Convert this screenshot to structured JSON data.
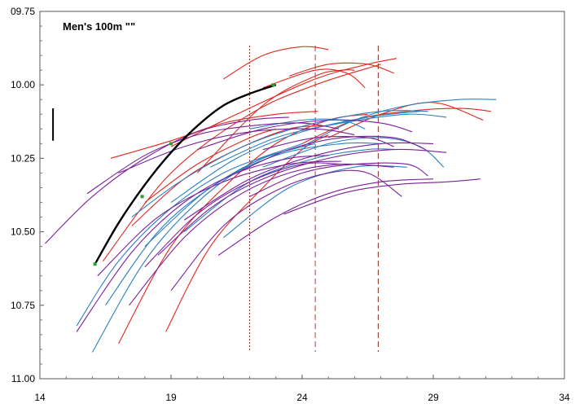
{
  "chart_data": {
    "type": "line",
    "title": "Men's 100m  \"\"",
    "xlabel": "",
    "ylabel": "",
    "xlim": [
      14,
      34
    ],
    "ylim": [
      11.0,
      9.75
    ],
    "y_inverted": true,
    "x_ticks": [
      14,
      19,
      24,
      29,
      34
    ],
    "x_tick_labels": [
      "14",
      "19",
      "24",
      "29",
      "34"
    ],
    "y_ticks": [
      9.75,
      10.0,
      10.25,
      10.5,
      10.75,
      11.0
    ],
    "y_tick_labels": [
      "09.75",
      "10.00",
      "10.25",
      "10.50",
      "10.75",
      "11.00"
    ],
    "grid": false,
    "reference_lines": [
      {
        "x": 22.0,
        "color": "#8b2a1a",
        "style": "dotted"
      },
      {
        "x": 24.5,
        "color": "#cc3333",
        "style": "dashed"
      },
      {
        "x": 26.9,
        "color": "#8b2a1a",
        "style": "dashed"
      }
    ],
    "error_bar": {
      "x": 14.5,
      "y_low": 10.08,
      "y_high": 10.19,
      "color": "#000000"
    },
    "highlight": {
      "color": "#000000",
      "points": [
        [
          16.1,
          10.61
        ],
        [
          17.0,
          10.47
        ],
        [
          18.0,
          10.34
        ],
        [
          19.0,
          10.23
        ],
        [
          20.0,
          10.14
        ],
        [
          21.0,
          10.07
        ],
        [
          22.0,
          10.03
        ],
        [
          23.0,
          10.0
        ]
      ],
      "markers": [
        [
          16.1,
          10.61
        ],
        [
          17.9,
          10.38
        ],
        [
          19.0,
          10.2
        ],
        [
          22.9,
          10.0
        ]
      ]
    },
    "series": [
      {
        "color": "#e0281e",
        "points": [
          [
            16.4,
            10.6
          ],
          [
            19.0,
            10.3
          ],
          [
            22.0,
            10.1
          ],
          [
            24.5,
            10.0
          ],
          [
            27.0,
            9.93
          ]
        ]
      },
      {
        "color": "#e0281e",
        "points": [
          [
            19.0,
            10.21
          ],
          [
            21.5,
            10.1
          ],
          [
            24.5,
            9.98
          ],
          [
            26.5,
            9.93
          ],
          [
            27.6,
            9.91
          ]
        ]
      },
      {
        "color": "#e0281e",
        "points": [
          [
            20.0,
            10.3
          ],
          [
            22.5,
            10.07
          ],
          [
            24.5,
            9.97
          ],
          [
            25.5,
            9.95
          ],
          [
            26.0,
            9.95
          ]
        ]
      },
      {
        "color": "#e0281e",
        "points": [
          [
            21.0,
            9.98
          ],
          [
            22.5,
            9.9
          ],
          [
            24.0,
            9.87
          ],
          [
            25.0,
            9.88
          ]
        ]
      },
      {
        "color": "#e0281e",
        "points": [
          [
            23.5,
            9.97
          ],
          [
            25.0,
            9.93
          ],
          [
            26.5,
            9.93
          ],
          [
            27.5,
            9.96
          ]
        ]
      },
      {
        "color": "#e0281e",
        "points": [
          [
            22.5,
            10.01
          ],
          [
            24.5,
            9.95
          ],
          [
            25.7,
            9.96
          ],
          [
            26.4,
            10.01
          ]
        ]
      },
      {
        "color": "#e0281e",
        "points": [
          [
            24.0,
            10.2
          ],
          [
            26.0,
            10.12
          ],
          [
            28.0,
            10.09
          ],
          [
            30.0,
            10.08
          ],
          [
            31.2,
            10.09
          ]
        ]
      },
      {
        "color": "#e0281e",
        "points": [
          [
            25.0,
            10.18
          ],
          [
            27.0,
            10.1
          ],
          [
            29.0,
            10.06
          ],
          [
            30.9,
            10.12
          ]
        ]
      },
      {
        "color": "#e0281e",
        "points": [
          [
            17.0,
            10.88
          ],
          [
            19.0,
            10.55
          ],
          [
            21.0,
            10.35
          ],
          [
            23.0,
            10.2
          ],
          [
            25.0,
            10.12
          ],
          [
            26.5,
            10.1
          ]
        ]
      },
      {
        "color": "#e0281e",
        "points": [
          [
            18.8,
            10.84
          ],
          [
            20.5,
            10.55
          ],
          [
            22.5,
            10.35
          ],
          [
            24.0,
            10.22
          ],
          [
            25.0,
            10.17
          ]
        ]
      },
      {
        "color": "#e0281e",
        "points": [
          [
            16.7,
            10.25
          ],
          [
            19.0,
            10.19
          ],
          [
            21.0,
            10.13
          ],
          [
            23.0,
            10.1
          ],
          [
            24.6,
            10.09
          ]
        ]
      },
      {
        "color": "#e0281e",
        "points": [
          [
            17.5,
            10.48
          ],
          [
            19.5,
            10.32
          ],
          [
            21.5,
            10.22
          ],
          [
            23.5,
            10.15
          ],
          [
            24.8,
            10.14
          ]
        ]
      },
      {
        "color": "#e0281e",
        "points": [
          [
            18.0,
            10.4
          ],
          [
            20.0,
            10.27
          ],
          [
            22.0,
            10.18
          ],
          [
            23.0,
            10.15
          ]
        ]
      },
      {
        "color": "#2a7fc0",
        "points": [
          [
            15.4,
            10.82
          ],
          [
            17.0,
            10.6
          ],
          [
            19.0,
            10.42
          ],
          [
            21.0,
            10.3
          ],
          [
            23.0,
            10.23
          ]
        ]
      },
      {
        "color": "#2a7fc0",
        "points": [
          [
            16.0,
            10.91
          ],
          [
            18.0,
            10.6
          ],
          [
            20.0,
            10.4
          ],
          [
            22.0,
            10.27
          ],
          [
            24.0,
            10.2
          ]
        ]
      },
      {
        "color": "#2a7fc0",
        "points": [
          [
            16.5,
            10.75
          ],
          [
            18.5,
            10.5
          ],
          [
            20.5,
            10.35
          ],
          [
            22.5,
            10.25
          ],
          [
            24.5,
            10.2
          ]
        ]
      },
      {
        "color": "#2a7fc0",
        "points": [
          [
            17.5,
            10.45
          ],
          [
            19.5,
            10.32
          ],
          [
            22.0,
            10.2
          ],
          [
            24.5,
            10.13
          ],
          [
            27.0,
            10.09
          ],
          [
            28.8,
            10.09
          ]
        ]
      },
      {
        "color": "#2a7fc0",
        "points": [
          [
            19.0,
            10.4
          ],
          [
            21.5,
            10.25
          ],
          [
            24.0,
            10.16
          ],
          [
            26.5,
            10.11
          ],
          [
            28.5,
            10.09
          ]
        ]
      },
      {
        "color": "#2a7fc0",
        "points": [
          [
            20.5,
            10.28
          ],
          [
            23.0,
            10.18
          ],
          [
            25.5,
            10.13
          ],
          [
            28.0,
            10.1
          ],
          [
            29.5,
            10.11
          ]
        ]
      },
      {
        "color": "#2a7fc0",
        "points": [
          [
            24.0,
            10.21
          ],
          [
            26.0,
            10.12
          ],
          [
            28.0,
            10.07
          ],
          [
            30.0,
            10.05
          ],
          [
            31.4,
            10.05
          ]
        ]
      },
      {
        "color": "#2a7fc0",
        "points": [
          [
            22.5,
            10.28
          ],
          [
            25.0,
            10.2
          ],
          [
            27.0,
            10.18
          ],
          [
            28.5,
            10.21
          ],
          [
            29.4,
            10.28
          ]
        ]
      },
      {
        "color": "#2a7fc0",
        "points": [
          [
            22.0,
            10.15
          ],
          [
            24.0,
            10.12
          ],
          [
            25.5,
            10.12
          ],
          [
            26.4,
            10.15
          ]
        ]
      },
      {
        "color": "#2a7fc0",
        "points": [
          [
            18.0,
            10.55
          ],
          [
            20.5,
            10.35
          ],
          [
            23.0,
            10.24
          ],
          [
            25.5,
            10.2
          ],
          [
            27.0,
            10.2
          ]
        ]
      },
      {
        "color": "#2a7fc0",
        "points": [
          [
            19.5,
            10.5
          ],
          [
            22.0,
            10.33
          ],
          [
            24.5,
            10.25
          ],
          [
            26.5,
            10.22
          ],
          [
            27.6,
            10.22
          ]
        ]
      },
      {
        "color": "#2a7fc0",
        "points": [
          [
            21.0,
            10.52
          ],
          [
            23.5,
            10.35
          ],
          [
            26.0,
            10.28
          ],
          [
            28.0,
            10.28
          ]
        ]
      },
      {
        "color": "#7a1f9a",
        "points": [
          [
            14.2,
            10.54
          ],
          [
            16.0,
            10.38
          ],
          [
            18.0,
            10.25
          ],
          [
            20.0,
            10.16
          ],
          [
            22.0,
            10.12
          ],
          [
            23.5,
            10.11
          ]
        ]
      },
      {
        "color": "#7a1f9a",
        "points": [
          [
            15.4,
            10.84
          ],
          [
            17.5,
            10.57
          ],
          [
            19.5,
            10.4
          ],
          [
            21.5,
            10.3
          ],
          [
            23.5,
            10.25
          ],
          [
            25.0,
            10.24
          ]
        ]
      },
      {
        "color": "#7a1f9a",
        "points": [
          [
            15.8,
            10.37
          ],
          [
            18.0,
            10.24
          ],
          [
            20.0,
            10.17
          ],
          [
            22.0,
            10.14
          ],
          [
            24.0,
            10.13
          ],
          [
            25.4,
            10.15
          ]
        ]
      },
      {
        "color": "#7a1f9a",
        "points": [
          [
            16.2,
            10.65
          ],
          [
            18.5,
            10.45
          ],
          [
            21.0,
            10.33
          ],
          [
            23.5,
            10.27
          ],
          [
            25.5,
            10.26
          ]
        ]
      },
      {
        "color": "#7a1f9a",
        "points": [
          [
            17.4,
            10.75
          ],
          [
            19.5,
            10.52
          ],
          [
            21.5,
            10.38
          ],
          [
            23.5,
            10.3
          ],
          [
            25.5,
            10.27
          ],
          [
            27.5,
            10.28
          ]
        ]
      },
      {
        "color": "#7a1f9a",
        "points": [
          [
            18.5,
            10.58
          ],
          [
            20.5,
            10.42
          ],
          [
            22.5,
            10.32
          ],
          [
            25.0,
            10.25
          ],
          [
            27.5,
            10.22
          ],
          [
            29.5,
            10.23
          ]
        ]
      },
      {
        "color": "#7a1f9a",
        "points": [
          [
            19.5,
            10.46
          ],
          [
            22.0,
            10.32
          ],
          [
            24.5,
            10.24
          ],
          [
            27.0,
            10.2
          ],
          [
            29.0,
            10.2
          ]
        ]
      },
      {
        "color": "#7a1f9a",
        "points": [
          [
            20.8,
            10.58
          ],
          [
            23.0,
            10.45
          ],
          [
            25.0,
            10.37
          ],
          [
            27.0,
            10.33
          ],
          [
            29.0,
            10.32
          ]
        ]
      },
      {
        "color": "#7a1f9a",
        "points": [
          [
            22.0,
            10.38
          ],
          [
            24.0,
            10.3
          ],
          [
            26.0,
            10.27
          ],
          [
            28.0,
            10.27
          ],
          [
            28.8,
            10.31
          ]
        ]
      },
      {
        "color": "#7a1f9a",
        "points": [
          [
            23.3,
            10.44
          ],
          [
            25.5,
            10.37
          ],
          [
            27.5,
            10.34
          ],
          [
            29.5,
            10.33
          ],
          [
            30.8,
            10.32
          ]
        ]
      },
      {
        "color": "#7a1f9a",
        "points": [
          [
            17.0,
            10.3
          ],
          [
            19.5,
            10.21
          ],
          [
            22.0,
            10.16
          ],
          [
            24.5,
            10.15
          ],
          [
            26.0,
            10.17
          ]
        ]
      },
      {
        "color": "#7a1f9a",
        "points": [
          [
            20.0,
            10.22
          ],
          [
            22.5,
            10.15
          ],
          [
            25.0,
            10.12
          ],
          [
            27.0,
            10.13
          ],
          [
            28.2,
            10.16
          ]
        ]
      },
      {
        "color": "#7a1f9a",
        "points": [
          [
            21.5,
            10.3
          ],
          [
            23.5,
            10.22
          ],
          [
            25.5,
            10.18
          ],
          [
            27.5,
            10.18
          ],
          [
            28.7,
            10.22
          ]
        ]
      },
      {
        "color": "#7a1f9a",
        "points": [
          [
            19.0,
            10.7
          ],
          [
            21.0,
            10.48
          ],
          [
            23.0,
            10.36
          ],
          [
            25.0,
            10.3
          ],
          [
            26.5,
            10.3
          ],
          [
            27.8,
            10.38
          ]
        ]
      },
      {
        "color": "#7a1f9a",
        "points": [
          [
            18.0,
            10.62
          ],
          [
            20.0,
            10.44
          ],
          [
            22.0,
            10.33
          ],
          [
            24.0,
            10.27
          ],
          [
            25.5,
            10.27
          ]
        ]
      },
      {
        "color": "#7a1f9a",
        "points": [
          [
            22.5,
            10.22
          ],
          [
            24.5,
            10.18
          ],
          [
            26.5,
            10.18
          ],
          [
            27.5,
            10.21
          ]
        ]
      }
    ]
  }
}
